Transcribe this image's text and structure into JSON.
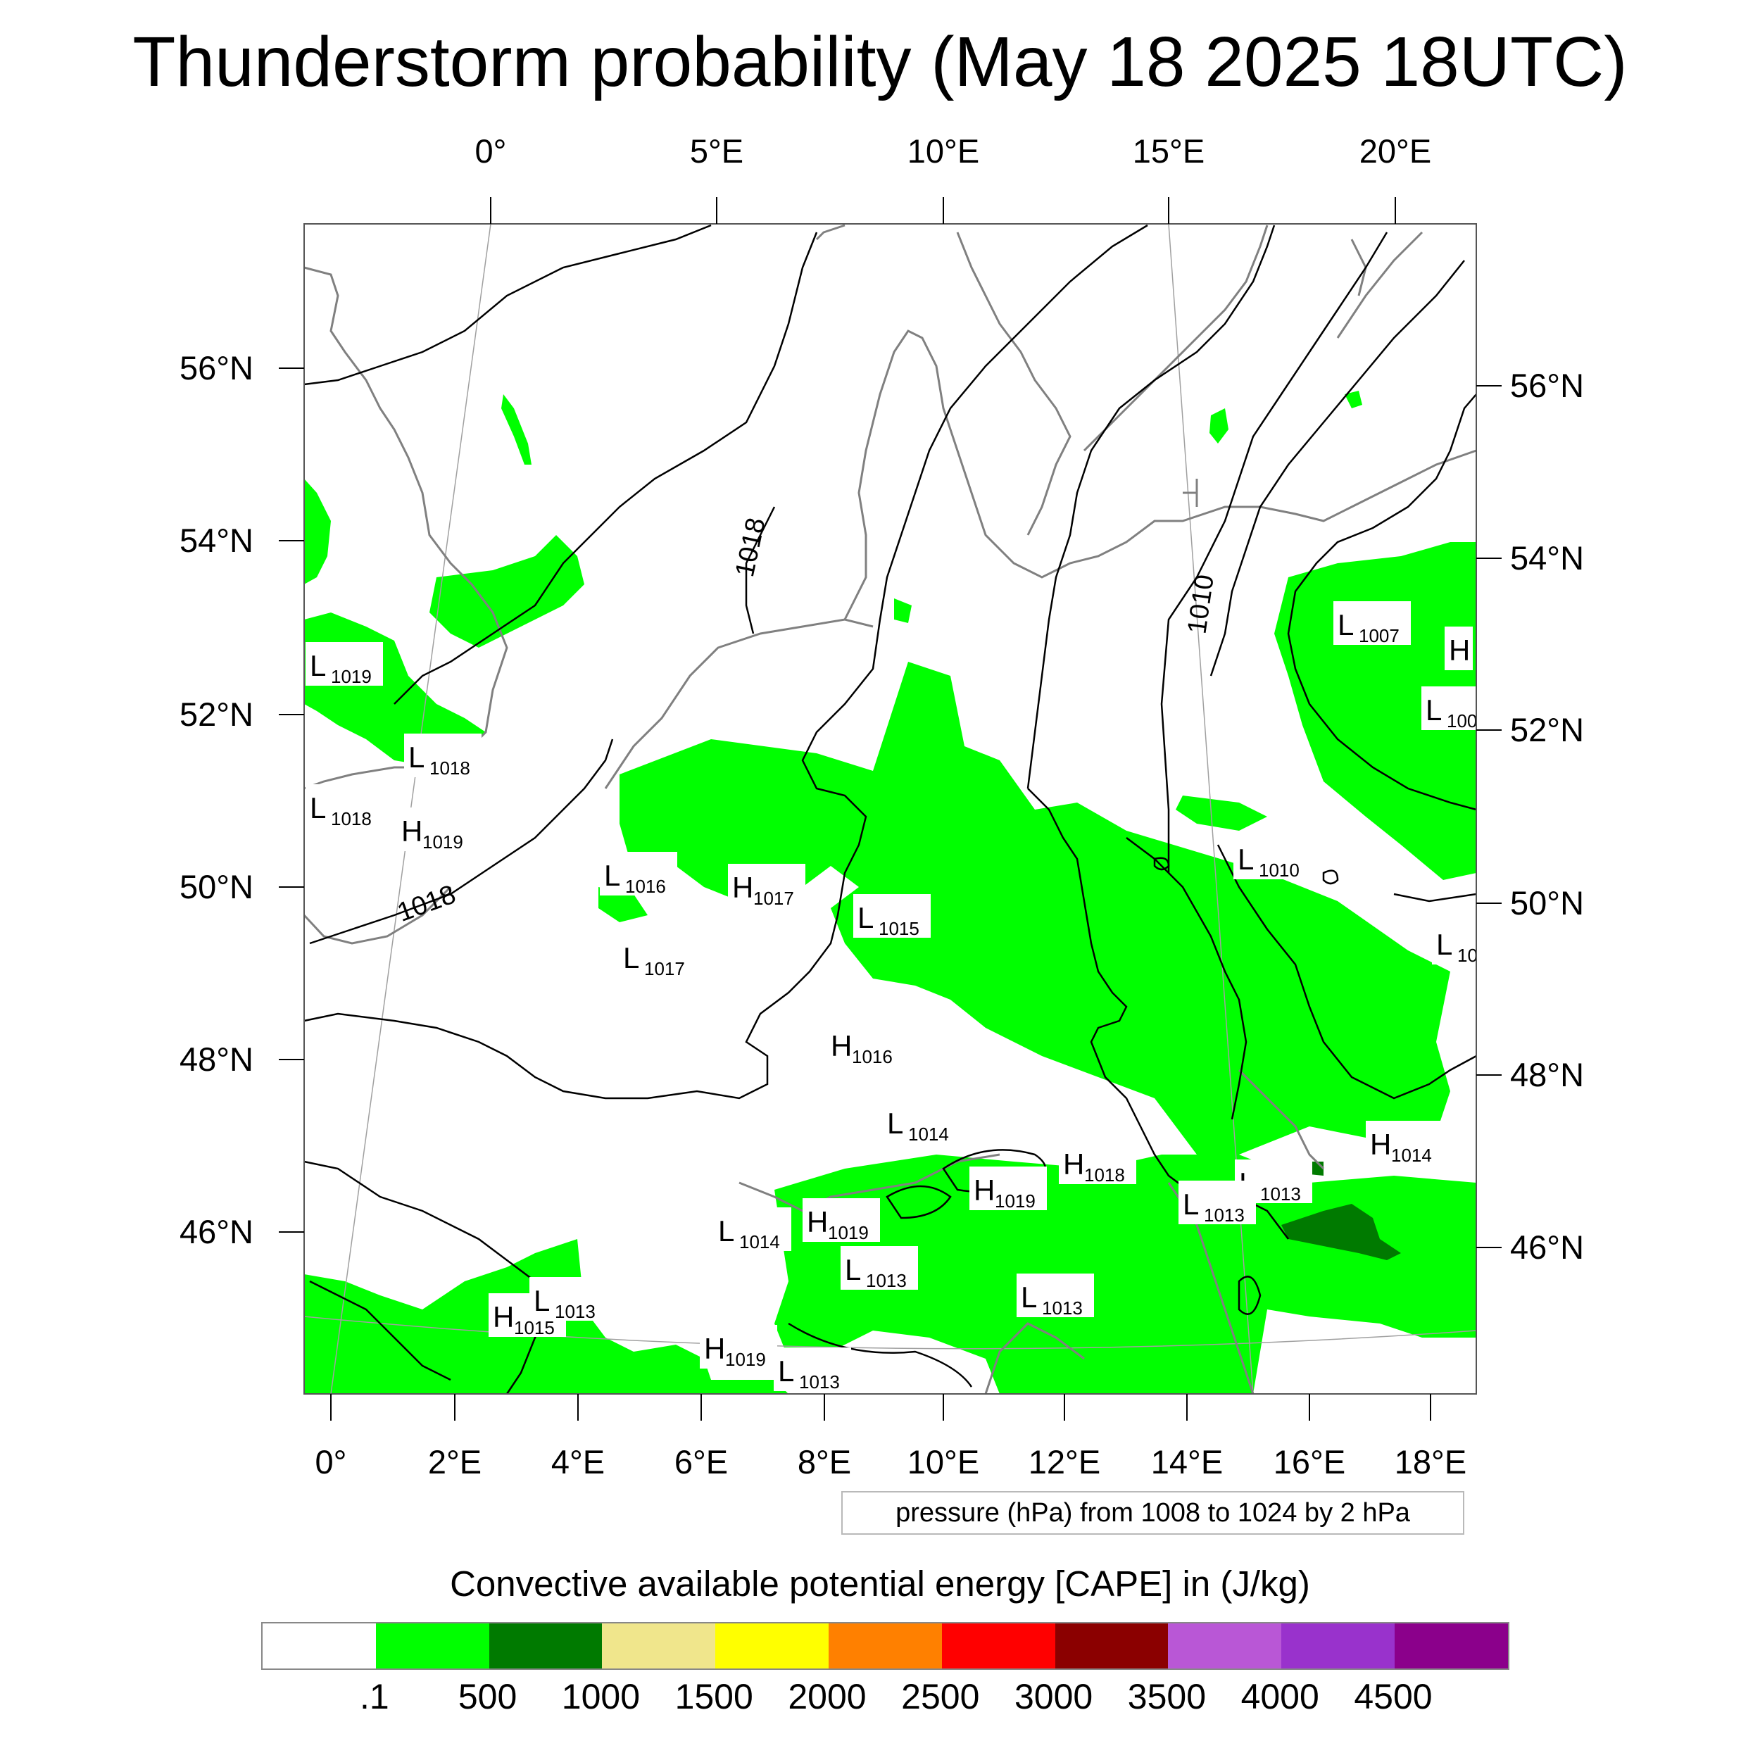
{
  "title": "Thunderstorm probability (May 18 2025 18UTC)",
  "top_lon_ticks": [
    "0°",
    "5°E",
    "10°E",
    "15°E",
    "20°E"
  ],
  "bottom_lon_ticks": [
    "0°",
    "2°E",
    "4°E",
    "6°E",
    "8°E",
    "10°E",
    "12°E",
    "14°E",
    "16°E",
    "18°E"
  ],
  "left_lat_ticks": [
    "56°N",
    "54°N",
    "52°N",
    "50°N",
    "48°N",
    "46°N"
  ],
  "right_lat_ticks": [
    "56°N",
    "54°N",
    "52°N",
    "50°N",
    "48°N",
    "46°N"
  ],
  "contour_note": "pressure (hPa) from 1008 to 1024 by 2 hPa",
  "colorbar": {
    "title": "Convective available potential energy [CAPE] in (J/kg)",
    "colors": [
      "#ffffff",
      "#00ff00",
      "#007a00",
      "#f0e68c",
      "#ffff00",
      "#ff8000",
      "#ff0000",
      "#8b0000",
      "#b957d6",
      "#9932cc",
      "#8b008b"
    ],
    "labels": [
      ".1",
      "500",
      "1000",
      "1500",
      "2000",
      "2500",
      "3000",
      "3500",
      "4000",
      "4500"
    ]
  },
  "isobar_labels": [
    "1018",
    "1018",
    "1010"
  ],
  "pressure_centers": [
    {
      "type": "L",
      "value": "1019"
    },
    {
      "type": "L",
      "value": "1018"
    },
    {
      "type": "L",
      "value": "1018"
    },
    {
      "type": "H",
      "value": "1019"
    },
    {
      "type": "L",
      "value": "1016"
    },
    {
      "type": "H",
      "value": "1017"
    },
    {
      "type": "L",
      "value": "1015"
    },
    {
      "type": "L",
      "value": "1017"
    },
    {
      "type": "H",
      "value": "1016"
    },
    {
      "type": "L",
      "value": "1014"
    },
    {
      "type": "L",
      "value": "1007"
    },
    {
      "type": "H",
      "value": ""
    },
    {
      "type": "L",
      "value": "100"
    },
    {
      "type": "L",
      "value": "1010"
    },
    {
      "type": "L",
      "value": "10"
    },
    {
      "type": "H",
      "value": "1014"
    },
    {
      "type": "H",
      "value": "1018"
    },
    {
      "type": "H",
      "value": "1019"
    },
    {
      "type": "L",
      "value": "1013"
    },
    {
      "type": "L",
      "value": "1013"
    },
    {
      "type": "L",
      "value": "1014"
    },
    {
      "type": "H",
      "value": "1019"
    },
    {
      "type": "L",
      "value": "1013"
    },
    {
      "type": "L",
      "value": "1013"
    },
    {
      "type": "H",
      "value": "1015"
    },
    {
      "type": "L",
      "value": "1013"
    },
    {
      "type": "H",
      "value": "1019"
    },
    {
      "type": "L",
      "value": "1013"
    }
  ],
  "colors": {
    "cape_low": "#00ff00",
    "cape_mid": "#007a00",
    "coast": "#808080",
    "isobar": "#000000"
  }
}
